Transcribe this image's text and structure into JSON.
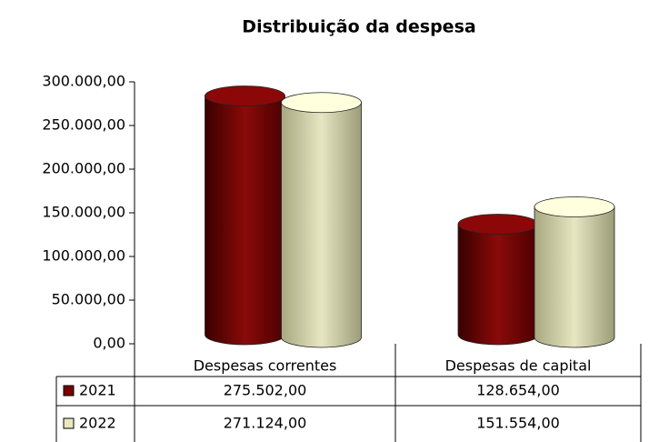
{
  "chart_data": {
    "type": "bar",
    "title": "Distribuição da despesa",
    "categories": [
      "Despesas correntes",
      "Despesas de capital"
    ],
    "series": [
      {
        "name": "2021",
        "color": "#7a0000",
        "values": [
          275502,
          128654
        ],
        "value_labels": [
          "275.502,00",
          "128.654,00"
        ]
      },
      {
        "name": "2022",
        "color": "#e8e8c0",
        "values": [
          271124,
          151554
        ],
        "value_labels": [
          "271.124,00",
          "151.554,00"
        ]
      }
    ],
    "ylim": [
      0,
      300000
    ],
    "yticks": [
      {
        "value": 0,
        "label": "0,00"
      },
      {
        "value": 50000,
        "label": "50.000,00"
      },
      {
        "value": 100000,
        "label": "100.000,00"
      },
      {
        "value": 150000,
        "label": "150.000,00"
      },
      {
        "value": 200000,
        "label": "200.000,00"
      },
      {
        "value": 250000,
        "label": "250.000,00"
      },
      {
        "value": 300000,
        "label": "300.000,00"
      }
    ]
  }
}
